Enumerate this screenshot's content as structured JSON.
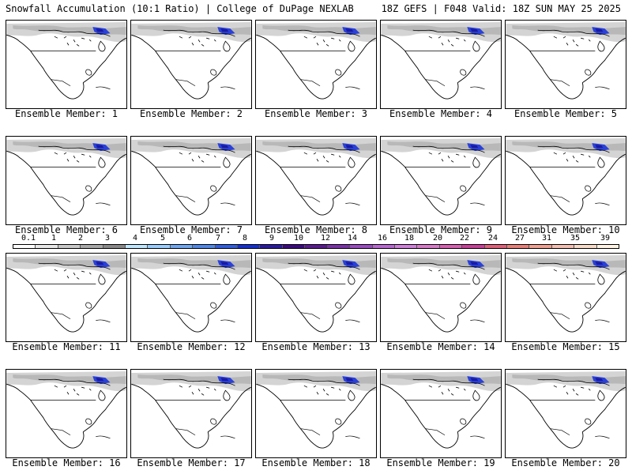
{
  "header": {
    "title": "Snowfall Accumulation (10:1 Ratio) | College of DuPage NEXLAB",
    "valid": "18Z GEFS | F048 Valid: 18Z SUN MAY 25 2025"
  },
  "members": [
    {
      "label": "Ensemble Member: 1"
    },
    {
      "label": "Ensemble Member: 2"
    },
    {
      "label": "Ensemble Member: 3"
    },
    {
      "label": "Ensemble Member: 4"
    },
    {
      "label": "Ensemble Member: 5"
    },
    {
      "label": "Ensemble Member: 6"
    },
    {
      "label": "Ensemble Member: 7"
    },
    {
      "label": "Ensemble Member: 8"
    },
    {
      "label": "Ensemble Member: 9"
    },
    {
      "label": "Ensemble Member: 10"
    },
    {
      "label": "Ensemble Member: 11"
    },
    {
      "label": "Ensemble Member: 12"
    },
    {
      "label": "Ensemble Member: 13"
    },
    {
      "label": "Ensemble Member: 14"
    },
    {
      "label": "Ensemble Member: 15"
    },
    {
      "label": "Ensemble Member: 16"
    },
    {
      "label": "Ensemble Member: 17"
    },
    {
      "label": "Ensemble Member: 18"
    },
    {
      "label": "Ensemble Member: 19"
    },
    {
      "label": "Ensemble Member: 20"
    }
  ],
  "colorbar": {
    "ticks": [
      "0.1",
      "1",
      "2",
      "3",
      "4",
      "5",
      "6",
      "7",
      "8",
      "9",
      "10",
      "12",
      "14",
      "16",
      "18",
      "20",
      "22",
      "24",
      "27",
      "31",
      "35",
      "39"
    ],
    "colors": [
      "#ffffff",
      "#e8e8e8",
      "#c8c8c8",
      "#a8a8a8",
      "#888888",
      "#bfe8ff",
      "#99ccff",
      "#6fa8f0",
      "#4f88e8",
      "#2f5fe0",
      "#1530d0",
      "#2a1aa0",
      "#3c0a80",
      "#5a1a90",
      "#7b32a8",
      "#9a4cc0",
      "#b868d0",
      "#cf80d8",
      "#d87ac8",
      "#d860b0",
      "#c84098",
      "#e0607a",
      "#e88078",
      "#f0a090",
      "#f4bfb0",
      "#f8dcc8",
      "#fff4e4"
    ]
  }
}
